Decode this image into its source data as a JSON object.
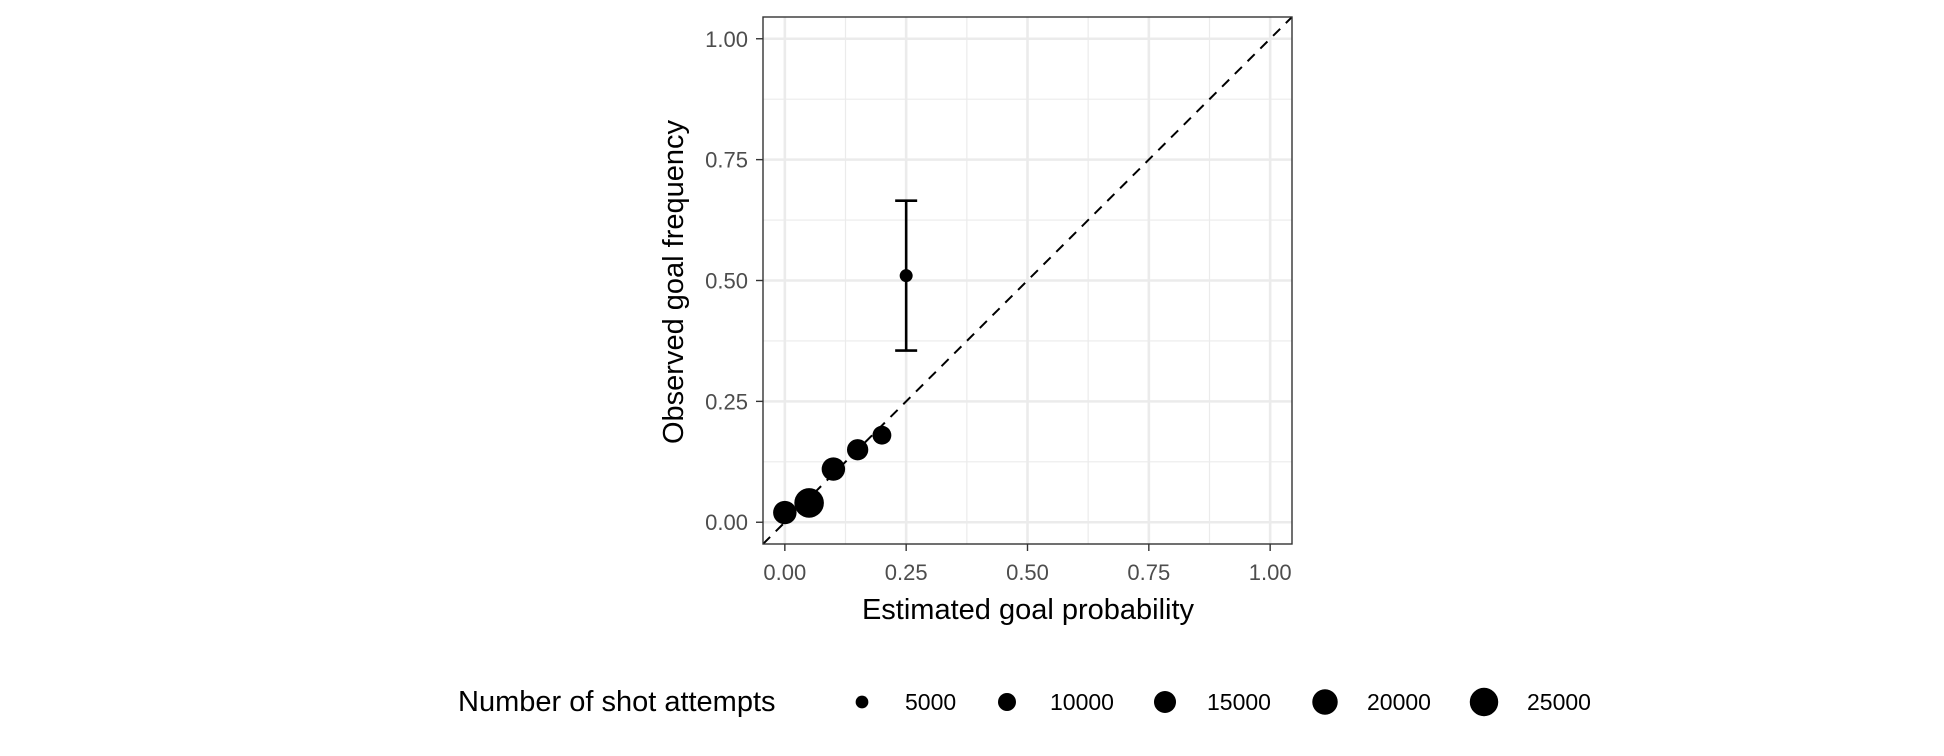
{
  "chart_data": {
    "type": "scatter",
    "xlabel": "Estimated goal probability",
    "ylabel": "Observed goal frequency",
    "xlim": [
      -0.045,
      1.045
    ],
    "ylim": [
      -0.045,
      1.045
    ],
    "xticks": [
      {
        "value": 0.0,
        "label": "0.00"
      },
      {
        "value": 0.25,
        "label": "0.25"
      },
      {
        "value": 0.5,
        "label": "0.50"
      },
      {
        "value": 0.75,
        "label": "0.75"
      },
      {
        "value": 1.0,
        "label": "1.00"
      }
    ],
    "yticks": [
      {
        "value": 0.0,
        "label": "0.00"
      },
      {
        "value": 0.25,
        "label": "0.25"
      },
      {
        "value": 0.5,
        "label": "0.50"
      },
      {
        "value": 0.75,
        "label": "0.75"
      },
      {
        "value": 1.0,
        "label": "1.00"
      }
    ],
    "grid": true,
    "reference_line": {
      "style": "dashed",
      "slope": 1,
      "intercept": 0
    },
    "points": [
      {
        "x": 0.0,
        "y": 0.02,
        "n": 17000
      },
      {
        "x": 0.05,
        "y": 0.04,
        "n": 27000
      },
      {
        "x": 0.1,
        "y": 0.11,
        "n": 17000
      },
      {
        "x": 0.15,
        "y": 0.15,
        "n": 14000
      },
      {
        "x": 0.2,
        "y": 0.18,
        "n": 11000
      },
      {
        "x": 0.25,
        "y": 0.51,
        "n": 40,
        "ymin": 0.355,
        "ymax": 0.665
      }
    ],
    "legend": {
      "title": "Number of shot attempts",
      "position": "bottom",
      "sizes": [
        {
          "value": 5000,
          "label": "5000"
        },
        {
          "value": 10000,
          "label": "10000"
        },
        {
          "value": 15000,
          "label": "15000"
        },
        {
          "value": 20000,
          "label": "20000"
        },
        {
          "value": 25000,
          "label": "25000"
        }
      ]
    },
    "colors": {
      "points": "#000000",
      "grid": "#ebebeb",
      "panel_border": "#333333"
    }
  }
}
